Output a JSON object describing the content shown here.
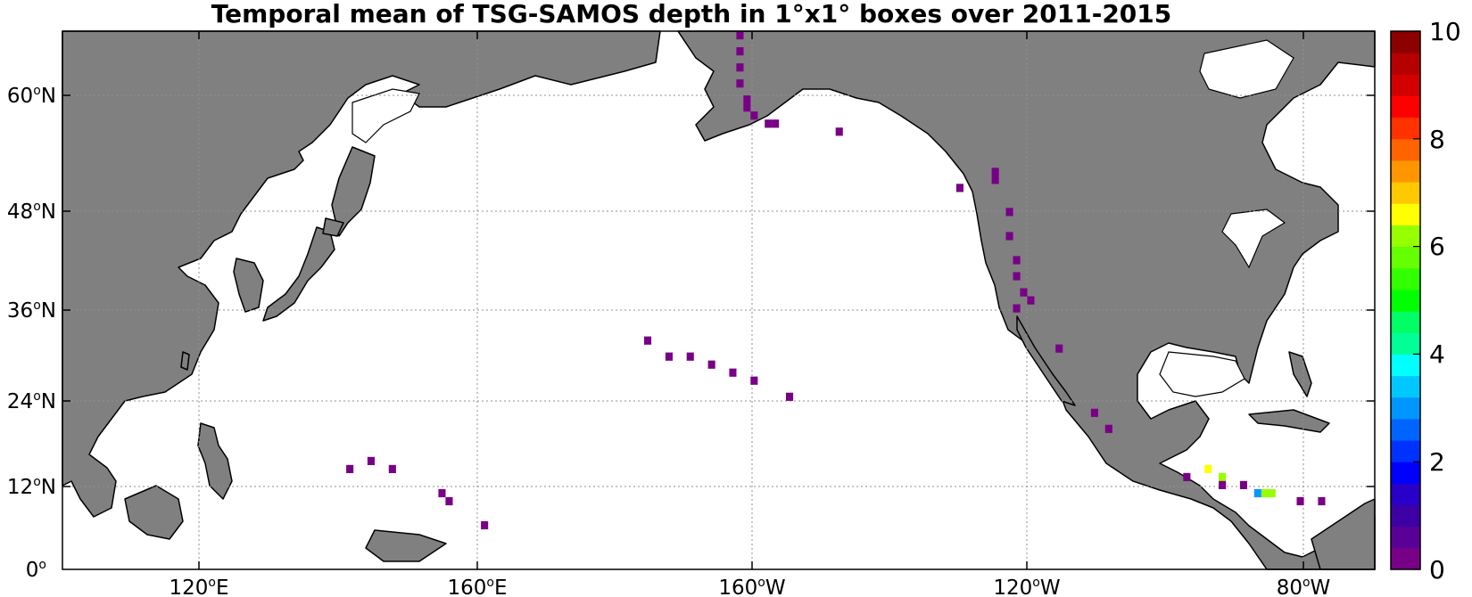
{
  "title": "Temporal mean of TSG-SAMOS depth in 1°x1° boxes over 2011-2015",
  "x_ticks": [
    {
      "deg": "120",
      "dir": "E"
    },
    {
      "deg": "160",
      "dir": "E"
    },
    {
      "deg": "160",
      "dir": "W"
    },
    {
      "deg": "120",
      "dir": "W"
    },
    {
      "deg": "80",
      "dir": "W"
    }
  ],
  "y_ticks": [
    {
      "deg": "60",
      "dir": "N"
    },
    {
      "deg": "48",
      "dir": "N"
    },
    {
      "deg": "36",
      "dir": "N"
    },
    {
      "deg": "24",
      "dir": "N"
    },
    {
      "deg": "12",
      "dir": "N"
    },
    {
      "deg": "0",
      "dir": ""
    }
  ],
  "colorbar": {
    "min": 0,
    "max": 10,
    "labels": [
      "10",
      "8",
      "6",
      "4",
      "2",
      "0"
    ],
    "colors": [
      "#780087",
      "#5a0096",
      "#3c00a5",
      "#2800c8",
      "#0000ff",
      "#0032ff",
      "#0064ff",
      "#0096ff",
      "#00c8ff",
      "#00ffff",
      "#00ff96",
      "#00ff64",
      "#00ff00",
      "#32ff00",
      "#64ff00",
      "#96ff00",
      "#ffff00",
      "#ffc800",
      "#ff9600",
      "#ff6400",
      "#ff3200",
      "#ff0000",
      "#d20000",
      "#b40000",
      "#8c0000"
    ]
  },
  "colors": {
    "land": "#808080",
    "ocean": "#ffffff",
    "grid": "#909090"
  },
  "chart_data": {
    "type": "heatmap",
    "title": "Temporal mean of TSG-SAMOS depth in 1°x1° boxes over 2011-2015",
    "xlim": [
      100,
      285
    ],
    "ylim": [
      0,
      67
    ],
    "value_range": [
      0,
      10
    ],
    "grid": true,
    "legend": "colorbar-right",
    "cells": [
      {
        "lon": 195,
        "lat": 66,
        "v": 0.2
      },
      {
        "lon": 195,
        "lat": 64,
        "v": 0.2
      },
      {
        "lon": 195,
        "lat": 62,
        "v": 0.2
      },
      {
        "lon": 195,
        "lat": 60,
        "v": 0.2
      },
      {
        "lon": 196,
        "lat": 58,
        "v": 0.2
      },
      {
        "lon": 196,
        "lat": 57,
        "v": 0.2
      },
      {
        "lon": 197,
        "lat": 56,
        "v": 0.2
      },
      {
        "lon": 199,
        "lat": 55,
        "v": 0.2
      },
      {
        "lon": 200,
        "lat": 55,
        "v": 0.2
      },
      {
        "lon": 209,
        "lat": 54,
        "v": 0.2
      },
      {
        "lon": 226,
        "lat": 47,
        "v": 0.2
      },
      {
        "lon": 231,
        "lat": 49,
        "v": 0.2
      },
      {
        "lon": 231,
        "lat": 48,
        "v": 0.2
      },
      {
        "lon": 233,
        "lat": 44,
        "v": 0.2
      },
      {
        "lon": 233,
        "lat": 41,
        "v": 0.2
      },
      {
        "lon": 234,
        "lat": 38,
        "v": 0.2
      },
      {
        "lon": 234,
        "lat": 36,
        "v": 0.2
      },
      {
        "lon": 235,
        "lat": 34,
        "v": 0.2
      },
      {
        "lon": 236,
        "lat": 33,
        "v": 0.2
      },
      {
        "lon": 234,
        "lat": 32,
        "v": 0.2
      },
      {
        "lon": 240,
        "lat": 27,
        "v": 0.2
      },
      {
        "lon": 245,
        "lat": 19,
        "v": 0.2
      },
      {
        "lon": 247,
        "lat": 17,
        "v": 0.2
      },
      {
        "lon": 182,
        "lat": 28,
        "v": 0.2
      },
      {
        "lon": 185,
        "lat": 26,
        "v": 0.2
      },
      {
        "lon": 188,
        "lat": 26,
        "v": 0.2
      },
      {
        "lon": 191,
        "lat": 25,
        "v": 0.2
      },
      {
        "lon": 194,
        "lat": 24,
        "v": 0.2
      },
      {
        "lon": 197,
        "lat": 23,
        "v": 0.2
      },
      {
        "lon": 202,
        "lat": 21,
        "v": 0.2
      },
      {
        "lon": 143,
        "lat": 13,
        "v": 0.2
      },
      {
        "lon": 146,
        "lat": 12,
        "v": 0.2
      },
      {
        "lon": 140,
        "lat": 12,
        "v": 0.2
      },
      {
        "lon": 153,
        "lat": 9,
        "v": 0.2
      },
      {
        "lon": 154,
        "lat": 8,
        "v": 0.2
      },
      {
        "lon": 159,
        "lat": 5,
        "v": 0.2
      },
      {
        "lon": 258,
        "lat": 11,
        "v": 0.2
      },
      {
        "lon": 261,
        "lat": 12,
        "v": 6.4
      },
      {
        "lon": 263,
        "lat": 11,
        "v": 6.3
      },
      {
        "lon": 263,
        "lat": 10,
        "v": 0.2
      },
      {
        "lon": 266,
        "lat": 10,
        "v": 0.2
      },
      {
        "lon": 268,
        "lat": 9,
        "v": 3.0
      },
      {
        "lon": 269,
        "lat": 9,
        "v": 6.2
      },
      {
        "lon": 270,
        "lat": 9,
        "v": 6.0
      },
      {
        "lon": 274,
        "lat": 8,
        "v": 0.2
      },
      {
        "lon": 277,
        "lat": 8,
        "v": 0.2
      }
    ]
  }
}
